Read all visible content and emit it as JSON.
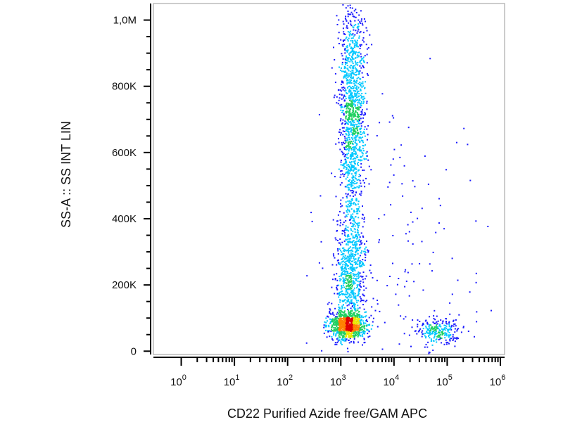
{
  "chart_data": {
    "type": "scatter",
    "style": "flow-cytometry-density-dot-plot",
    "xlabel": "CD22 Purified Azide free/GAM APC",
    "ylabel": "SS-A :: SS INT LIN",
    "x_scale": "log",
    "xlim": [
      0.3,
      1200000
    ],
    "ylim": [
      -10000,
      1050000
    ],
    "x_ticks": [
      {
        "value": 1,
        "base": "10",
        "exp": "0"
      },
      {
        "value": 10,
        "base": "10",
        "exp": "1"
      },
      {
        "value": 100,
        "base": "10",
        "exp": "2"
      },
      {
        "value": 1000,
        "base": "10",
        "exp": "3"
      },
      {
        "value": 10000,
        "base": "10",
        "exp": "4"
      },
      {
        "value": 100000,
        "base": "10",
        "exp": "5"
      },
      {
        "value": 1000000,
        "base": "10",
        "exp": "6"
      }
    ],
    "y_ticks": [
      {
        "value": 0,
        "label": "0"
      },
      {
        "value": 200000,
        "label": "200K"
      },
      {
        "value": 400000,
        "label": "400K"
      },
      {
        "value": 600000,
        "label": "600K"
      },
      {
        "value": 800000,
        "label": "800K"
      },
      {
        "value": 1000000,
        "label": "1,0M"
      }
    ],
    "populations": [
      {
        "x_center": 1300,
        "x_log_sd": 0.18,
        "y_center": 80000,
        "y_sd": 22000,
        "count": 900
      },
      {
        "x_center": 1500,
        "x_log_sd": 0.14,
        "y_center": 250000,
        "y_sd": 90000,
        "count": 700
      },
      {
        "x_center": 1600,
        "x_log_sd": 0.12,
        "y_center": 720000,
        "y_sd": 170000,
        "count": 1300
      },
      {
        "x_center": 65000,
        "x_log_sd": 0.2,
        "y_center": 65000,
        "y_sd": 20000,
        "count": 260
      },
      {
        "x_center": 12000,
        "x_log_sd": 0.9,
        "y_center": 300000,
        "y_sd": 260000,
        "count": 160
      }
    ],
    "grid": false,
    "legend": "none",
    "colormap": [
      "#1a1aff",
      "#00c8ff",
      "#20d060",
      "#e8e800",
      "#ff8000",
      "#e00000"
    ]
  }
}
